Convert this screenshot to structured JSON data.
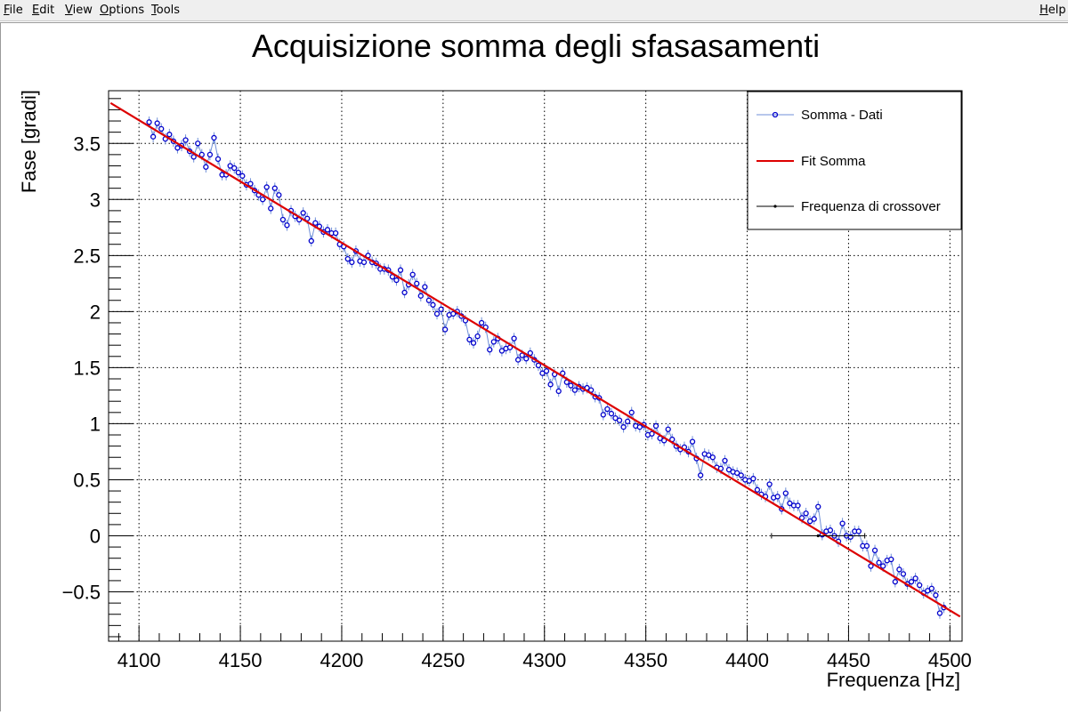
{
  "menubar": {
    "items": [
      "File",
      "Edit",
      "View",
      "Options",
      "Tools"
    ],
    "help": "Help"
  },
  "chart_data": {
    "type": "scatter",
    "title": "Acquisizione somma degli sfasasamenti",
    "xlabel": "Frequenza [Hz]",
    "ylabel": "Fase [gradi]",
    "xlim": [
      4085,
      4506
    ],
    "ylim": [
      -0.94,
      3.97
    ],
    "grid": true,
    "legend_position": "top-right",
    "x_ticks": [
      4100,
      4150,
      4200,
      4250,
      4300,
      4350,
      4400,
      4450,
      4500
    ],
    "x_tick_labels": [
      "4100",
      "4150",
      "4200",
      "4250",
      "4300",
      "4350",
      "4400",
      "4450",
      "4500"
    ],
    "y_ticks": [
      -0.5,
      0,
      0.5,
      1,
      1.5,
      2,
      2.5,
      3,
      3.5
    ],
    "y_tick_labels": [
      "−0.5",
      "0",
      "0.5",
      "1",
      "1.5",
      "2",
      "2.5",
      "3",
      "3.5"
    ],
    "series": [
      {
        "name": "Somma - Dati",
        "kind": "points_with_errors",
        "color": "#0000cc",
        "line_color": "#6f8fd8",
        "x_start": 4105,
        "x_step": 2,
        "count": 193,
        "y_error": 0.05,
        "y": [
          3.69,
          3.56,
          3.68,
          3.63,
          3.54,
          3.58,
          3.52,
          3.46,
          3.48,
          3.53,
          3.43,
          3.38,
          3.5,
          3.4,
          3.29,
          3.4,
          3.55,
          3.36,
          3.22,
          3.22,
          3.3,
          3.28,
          3.24,
          3.21,
          3.13,
          3.14,
          3.08,
          3.04,
          3.0,
          3.11,
          2.92,
          3.1,
          3.04,
          2.82,
          2.77,
          2.9,
          2.85,
          2.82,
          2.88,
          2.83,
          2.63,
          2.79,
          2.76,
          2.71,
          2.73,
          2.7,
          2.7,
          2.6,
          2.58,
          2.47,
          2.44,
          2.54,
          2.45,
          2.44,
          2.5,
          2.44,
          2.43,
          2.38,
          2.38,
          2.37,
          2.31,
          2.28,
          2.37,
          2.17,
          2.24,
          2.33,
          2.25,
          2.14,
          2.22,
          2.1,
          2.06,
          1.98,
          2.02,
          1.84,
          1.97,
          1.98,
          2.0,
          1.96,
          1.92,
          1.75,
          1.72,
          1.78,
          1.9,
          1.86,
          1.66,
          1.73,
          1.76,
          1.65,
          1.67,
          1.68,
          1.76,
          1.57,
          1.61,
          1.58,
          1.63,
          1.57,
          1.52,
          1.45,
          1.47,
          1.35,
          1.44,
          1.29,
          1.45,
          1.37,
          1.34,
          1.3,
          1.33,
          1.31,
          1.32,
          1.3,
          1.24,
          1.23,
          1.08,
          1.13,
          1.09,
          1.05,
          1.03,
          0.97,
          1.02,
          1.1,
          0.98,
          0.97,
          0.99,
          0.9,
          0.91,
          0.98,
          0.87,
          0.85,
          0.95,
          0.86,
          0.8,
          0.77,
          0.79,
          0.75,
          0.84,
          0.69,
          0.54,
          0.73,
          0.72,
          0.7,
          0.61,
          0.6,
          0.67,
          0.59,
          0.57,
          0.56,
          0.54,
          0.5,
          0.49,
          0.51,
          0.41,
          0.37,
          0.35,
          0.46,
          0.34,
          0.35,
          0.24,
          0.38,
          0.29,
          0.27,
          0.27,
          0.16,
          0.2,
          0.13,
          0.15,
          0.26,
          0.01,
          0.04,
          0.05,
          0.0,
          -0.05,
          0.11,
          0.0,
          -0.01,
          0.04,
          0.04,
          -0.09,
          -0.09,
          -0.27,
          -0.13,
          -0.24,
          -0.27,
          -0.22,
          -0.21,
          -0.41,
          -0.3,
          -0.34,
          -0.43,
          -0.41,
          -0.38,
          -0.44,
          -0.51,
          -0.49,
          -0.47,
          -0.53,
          -0.69,
          -0.64
        ]
      },
      {
        "name": "Fit Somma",
        "kind": "line",
        "color": "#dd0000",
        "x": [
          4086,
          4505
        ],
        "y": [
          3.86,
          -0.72
        ]
      },
      {
        "name": "Frequenza di crossover",
        "kind": "point_with_x_error",
        "color": "#000000",
        "x": 4435,
        "y": 0.0,
        "x_error": 23
      }
    ]
  }
}
